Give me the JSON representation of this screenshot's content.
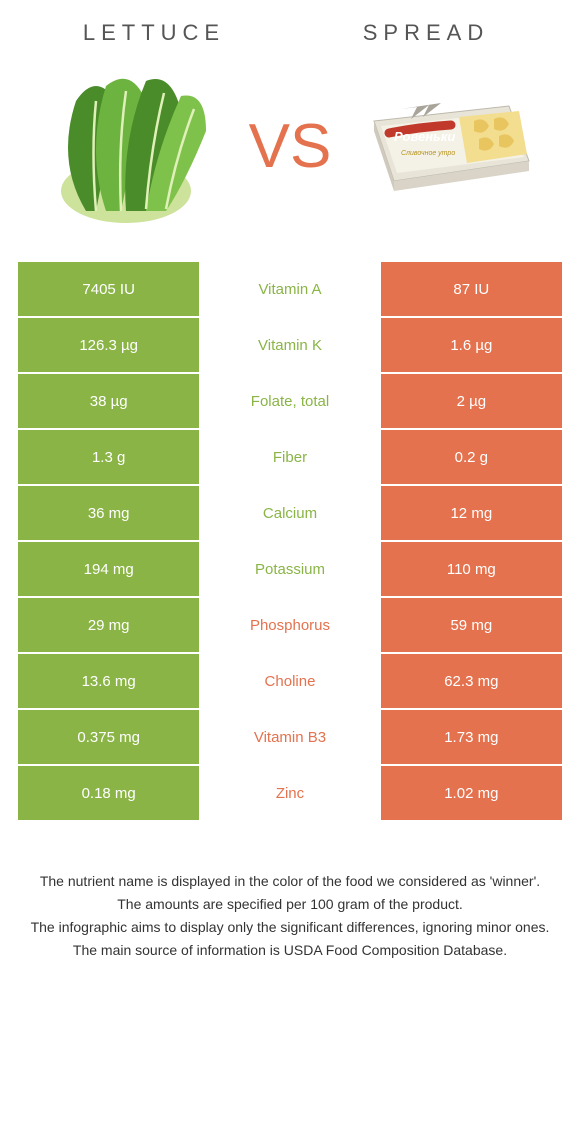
{
  "colors": {
    "left": "#8ab546",
    "right": "#e4724e",
    "left_text": "#8ab546",
    "right_text": "#e4724e",
    "vs": "#e4724e"
  },
  "header": {
    "left": "LETTUCE",
    "right": "SPREAD"
  },
  "vs": "VS",
  "rows": [
    {
      "left": "7405 IU",
      "mid": "Vitamin A",
      "right": "87 IU",
      "winner": "left"
    },
    {
      "left": "126.3 µg",
      "mid": "Vitamin K",
      "right": "1.6 µg",
      "winner": "left"
    },
    {
      "left": "38 µg",
      "mid": "Folate, total",
      "right": "2 µg",
      "winner": "left"
    },
    {
      "left": "1.3 g",
      "mid": "Fiber",
      "right": "0.2 g",
      "winner": "left"
    },
    {
      "left": "36 mg",
      "mid": "Calcium",
      "right": "12 mg",
      "winner": "left"
    },
    {
      "left": "194 mg",
      "mid": "Potassium",
      "right": "110 mg",
      "winner": "left"
    },
    {
      "left": "29 mg",
      "mid": "Phosphorus",
      "right": "59 mg",
      "winner": "right"
    },
    {
      "left": "13.6 mg",
      "mid": "Choline",
      "right": "62.3 mg",
      "winner": "right"
    },
    {
      "left": "0.375 mg",
      "mid": "Vitamin B3",
      "right": "1.73 mg",
      "winner": "right"
    },
    {
      "left": "0.18 mg",
      "mid": "Zinc",
      "right": "1.02 mg",
      "winner": "right"
    }
  ],
  "footer": [
    "The nutrient name is displayed in the color of the food we considered as 'winner'.",
    "The amounts are specified per 100 gram of the product.",
    "The infographic aims to display only the significant differences, ignoring minor ones.",
    "The main source of information is USDA Food Composition Database."
  ]
}
